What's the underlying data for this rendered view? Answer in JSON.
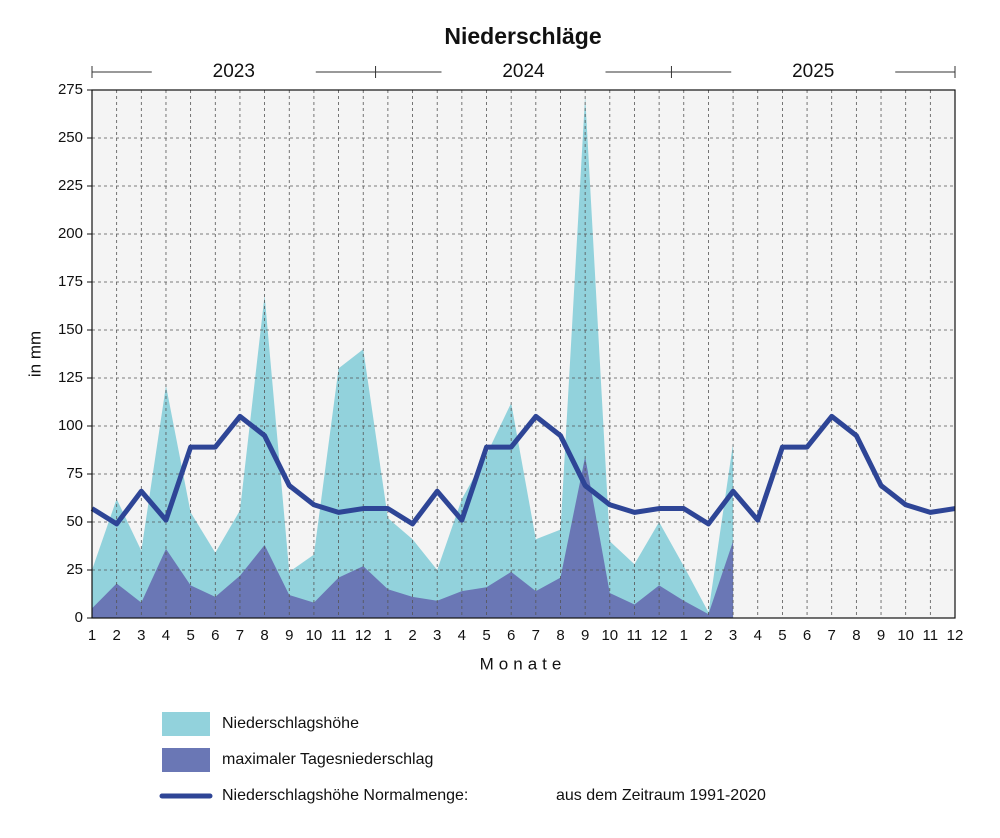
{
  "chart_data": {
    "type": "area",
    "title": "Niederschläge",
    "years": [
      "2023",
      "2024",
      "2025"
    ],
    "xlabel": "Monate",
    "ylabel": "in mm",
    "categories": [
      "1",
      "2",
      "3",
      "4",
      "5",
      "6",
      "7",
      "8",
      "9",
      "10",
      "11",
      "12",
      "1",
      "2",
      "3",
      "4",
      "5",
      "6",
      "7",
      "8",
      "9",
      "10",
      "11",
      "12",
      "1",
      "2",
      "3",
      "4",
      "5",
      "6",
      "7",
      "8",
      "9",
      "10",
      "11",
      "12"
    ],
    "series": [
      {
        "name": "Niederschlagshöhe",
        "color": "#92d2dc",
        "kind": "area",
        "values": [
          25,
          62,
          35,
          121,
          55,
          34,
          56,
          168,
          24,
          33,
          130,
          140,
          52,
          41,
          25,
          62,
          85,
          112,
          41,
          46,
          272,
          40,
          28,
          50,
          27,
          3,
          91,
          null,
          null,
          null,
          null,
          null,
          null,
          null,
          null,
          null
        ]
      },
      {
        "name": "maximaler Tagesniederschlag",
        "color": "#6a77b5",
        "kind": "area",
        "values": [
          5,
          18,
          8,
          36,
          17,
          11,
          22,
          38,
          12,
          8,
          21,
          27,
          15,
          11,
          9,
          14,
          16,
          24,
          14,
          21,
          84,
          13,
          7,
          17,
          9,
          2,
          40,
          null,
          null,
          null,
          null,
          null,
          null,
          null,
          null,
          null
        ]
      },
      {
        "name": "Niederschlagshöhe Normalmenge:",
        "color": "#2e4596",
        "kind": "line",
        "values": [
          57,
          49,
          66,
          51,
          89,
          89,
          105,
          95,
          69,
          59,
          55,
          57,
          57,
          49,
          66,
          51,
          89,
          89,
          105,
          95,
          69,
          59,
          55,
          57,
          57,
          49,
          66,
          51,
          89,
          89,
          105,
          95,
          69,
          59,
          55,
          57
        ]
      }
    ],
    "legend_note": "aus dem Zeitraum 1991-2020",
    "ylim": [
      0,
      275
    ],
    "yticks": [
      0,
      25,
      50,
      75,
      100,
      125,
      150,
      175,
      200,
      225,
      250,
      275
    ],
    "grid": true
  }
}
